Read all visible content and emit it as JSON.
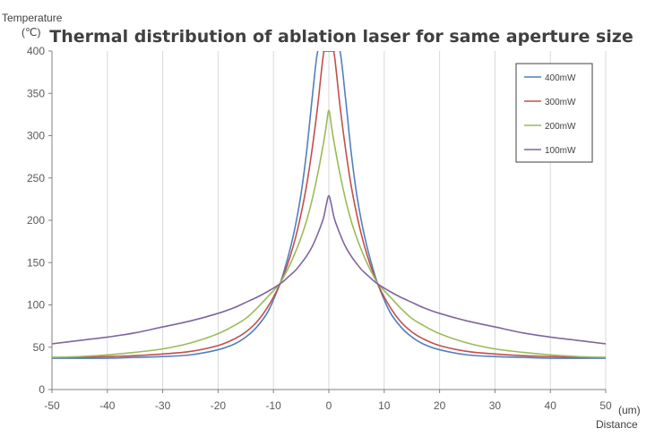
{
  "chart_data": {
    "type": "line",
    "title": "Thermal distribution of  ablation laser for same aperture size",
    "ylabel": "Temperature",
    "yunit": "(℃)",
    "xunit": "(um)",
    "xlabel": "Distance",
    "xlim": [
      -50,
      50
    ],
    "ylim": [
      0,
      400
    ],
    "xticks": [
      "-50",
      "-40",
      "-30",
      "-20",
      "-10",
      "0",
      "10",
      "20",
      "30",
      "40",
      "50"
    ],
    "yticks": [
      "0",
      "50",
      "100",
      "150",
      "200",
      "250",
      "300",
      "350",
      "400"
    ],
    "grid": "vertical",
    "legend_position": "top-right",
    "x": [
      -50,
      -45,
      -40,
      -35,
      -30,
      -25,
      -20,
      -17,
      -15,
      -13,
      -11,
      -9,
      -8,
      -7,
      -6,
      -5,
      -4,
      -3,
      -2,
      -1,
      -0.5,
      0,
      0.5,
      1,
      2,
      3,
      4,
      5,
      6,
      7,
      8,
      9,
      11,
      13,
      15,
      17,
      20,
      25,
      30,
      35,
      40,
      45,
      50
    ],
    "series": [
      {
        "name": "400mW",
        "color": "#4f81bd",
        "values": [
          37,
          37,
          37,
          38,
          39,
          41,
          47,
          54,
          62,
          74,
          92,
          122,
          142,
          166,
          195,
          232,
          282,
          345,
          400,
          400,
          400,
          400,
          400,
          400,
          400,
          345,
          282,
          232,
          195,
          166,
          142,
          122,
          92,
          74,
          62,
          54,
          47,
          41,
          39,
          38,
          37,
          37,
          37
        ]
      },
      {
        "name": "300mW",
        "color": "#c0504d",
        "values": [
          38,
          38,
          39,
          40,
          42,
          45,
          52,
          60,
          68,
          80,
          98,
          122,
          138,
          157,
          180,
          208,
          242,
          285,
          336,
          395,
          400,
          400,
          400,
          395,
          336,
          285,
          242,
          208,
          180,
          157,
          138,
          122,
          98,
          80,
          68,
          60,
          52,
          45,
          42,
          40,
          39,
          38,
          38
        ]
      },
      {
        "name": "200mW",
        "color": "#9bbb59",
        "values": [
          38,
          39,
          41,
          44,
          48,
          55,
          66,
          76,
          84,
          96,
          110,
          124,
          135,
          148,
          163,
          180,
          200,
          225,
          255,
          290,
          310,
          330,
          310,
          290,
          255,
          225,
          200,
          180,
          163,
          148,
          135,
          124,
          110,
          96,
          84,
          76,
          66,
          55,
          48,
          44,
          41,
          39,
          38
        ]
      },
      {
        "name": "100mW",
        "color": "#8064a2",
        "values": [
          54,
          58,
          62,
          67,
          74,
          81,
          90,
          97,
          103,
          109,
          116,
          124,
          129,
          135,
          141,
          149,
          158,
          169,
          184,
          202,
          217,
          229,
          217,
          202,
          184,
          169,
          158,
          149,
          141,
          135,
          129,
          124,
          116,
          109,
          103,
          97,
          90,
          81,
          74,
          67,
          62,
          58,
          54
        ]
      }
    ]
  }
}
